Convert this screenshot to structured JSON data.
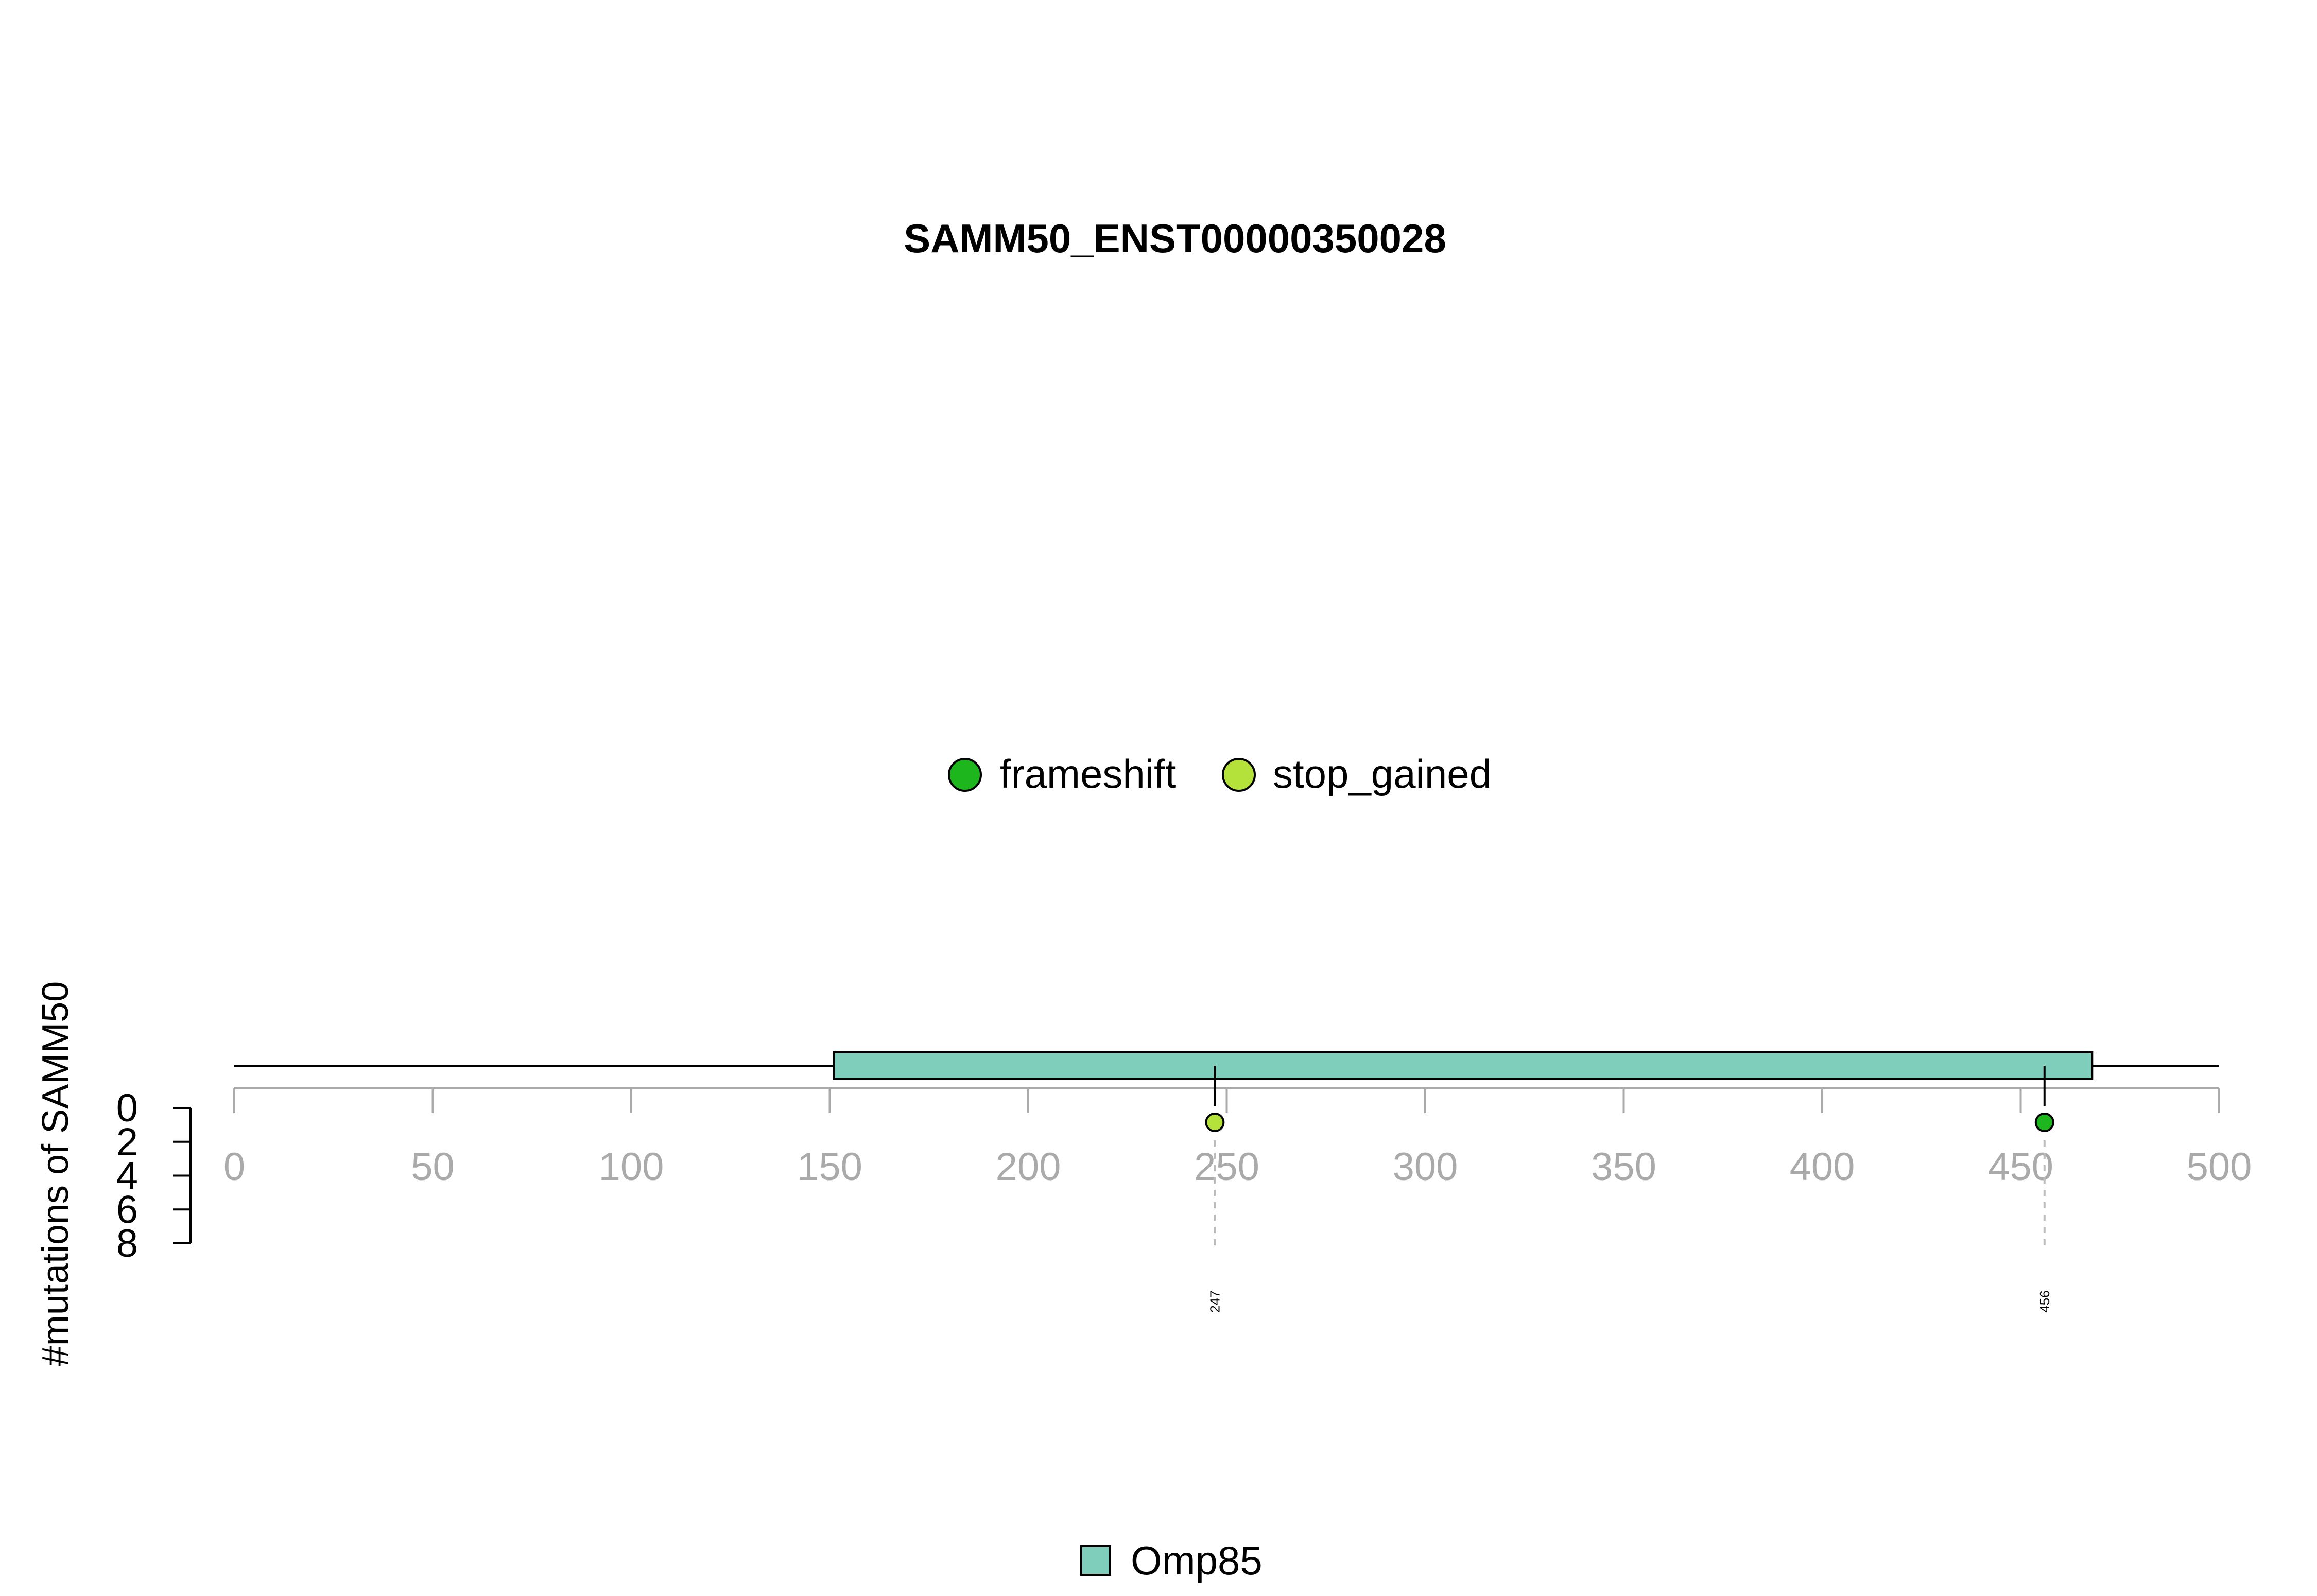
{
  "chart_data": {
    "type": "lollipop",
    "title": "SAMM50_ENST00000350028",
    "ylabel": "#mutations of SAMM50",
    "xlim": [
      0,
      500
    ],
    "x_ticks": [
      0,
      50,
      100,
      150,
      200,
      250,
      300,
      350,
      400,
      450,
      500
    ],
    "y_ticks": [
      0,
      2,
      4,
      6,
      8
    ],
    "protein_length": 500,
    "domains": [
      {
        "name": "Omp85",
        "start": 151,
        "end": 468,
        "color": "#7FCDBB"
      }
    ],
    "mutation_types": [
      {
        "name": "frameshift",
        "color": "#1DB71D"
      },
      {
        "name": "stop_gained",
        "color": "#B5E23A"
      }
    ],
    "mutations": [
      {
        "position": 247,
        "count": 1,
        "type": "stop_gained",
        "label": "247"
      },
      {
        "position": 456,
        "count": 1,
        "type": "frameshift",
        "label": "456"
      }
    ],
    "axis_color": "#AAAAAA",
    "grid": false,
    "legend_position": "top-center",
    "domain_legend_position": "bottom-center"
  }
}
